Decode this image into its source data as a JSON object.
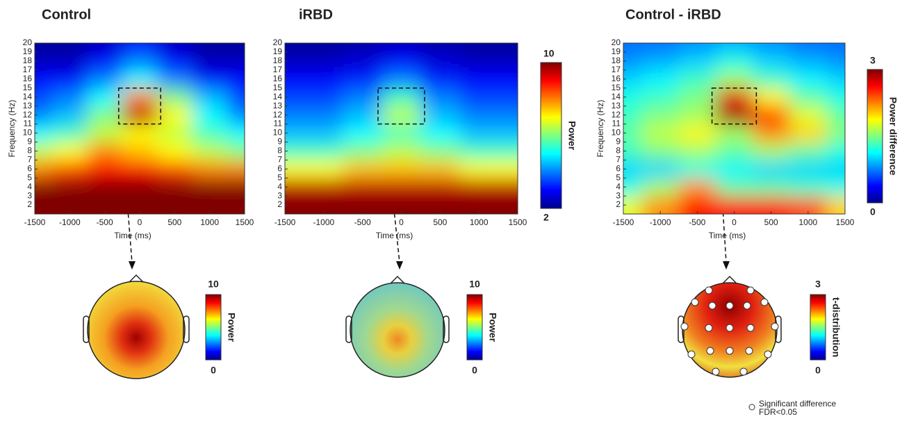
{
  "chart_data": [
    {
      "type": "heatmap",
      "title": "Control",
      "xlabel": "Time (ms)",
      "ylabel": "Frequency (Hz)",
      "x": [
        -1500,
        -1000,
        -500,
        0,
        500,
        1000,
        1500
      ],
      "y": [
        2,
        4,
        6,
        8,
        10,
        12,
        14,
        16,
        18,
        20
      ],
      "values": [
        [
          10,
          10,
          10,
          10,
          10,
          10,
          10
        ],
        [
          10,
          10,
          10,
          10,
          10,
          10,
          10
        ],
        [
          8,
          8.5,
          9,
          9,
          8.5,
          8,
          8
        ],
        [
          6.5,
          7,
          8,
          7.5,
          7,
          6.5,
          6
        ],
        [
          5,
          5.5,
          6.5,
          7,
          6.5,
          5.5,
          5
        ],
        [
          4,
          4.5,
          6,
          9.5,
          7,
          5,
          4
        ],
        [
          3.5,
          4,
          5,
          8,
          6,
          4.5,
          3.5
        ],
        [
          3,
          3,
          4,
          5,
          4,
          3,
          3
        ],
        [
          2.5,
          2.5,
          3,
          4,
          3,
          2.5,
          2.5
        ],
        [
          2.2,
          2.2,
          2.5,
          3,
          2.5,
          2.2,
          2.2
        ]
      ],
      "xlim": [
        -1500,
        1500
      ],
      "ylim": [
        1,
        20
      ],
      "xticks": [
        -1500,
        -1000,
        -500,
        0,
        500,
        1000,
        1500
      ],
      "yticks": [
        2,
        3,
        4,
        5,
        6,
        7,
        8,
        9,
        10,
        11,
        12,
        13,
        14,
        15,
        16,
        17,
        18,
        19,
        20
      ],
      "clim": [
        2,
        10
      ],
      "colormap": "jet"
    },
    {
      "type": "heatmap",
      "title": "iRBD",
      "xlabel": "Time (ms)",
      "x": [
        -1500,
        -1000,
        -500,
        0,
        500,
        1000,
        1500
      ],
      "y": [
        2,
        4,
        6,
        8,
        10,
        12,
        14,
        16,
        18,
        20
      ],
      "values": [
        [
          10,
          10,
          10,
          10,
          10,
          10,
          10
        ],
        [
          9.5,
          9.5,
          9.5,
          9.5,
          9.5,
          9.5,
          9.5
        ],
        [
          7,
          7,
          7.5,
          7.5,
          7.5,
          7,
          7
        ],
        [
          5.5,
          5.5,
          6,
          6.5,
          6,
          5.5,
          5.5
        ],
        [
          4.5,
          4.5,
          5,
          5.5,
          5,
          4.5,
          4.5
        ],
        [
          4,
          4,
          4.5,
          6.5,
          4.5,
          4,
          4
        ],
        [
          3.5,
          3.5,
          4,
          5.5,
          4,
          3.5,
          3.5
        ],
        [
          3,
          3,
          3.2,
          4,
          3.2,
          3,
          3
        ],
        [
          2.5,
          2.5,
          2.7,
          3,
          2.7,
          2.5,
          2.5
        ],
        [
          2.2,
          2.2,
          2.3,
          2.5,
          2.3,
          2.2,
          2.2
        ]
      ],
      "xlim": [
        -1500,
        1500
      ],
      "ylim": [
        1,
        20
      ],
      "xticks": [
        -1500,
        -1000,
        -500,
        0,
        500,
        1000,
        1500
      ],
      "yticks": [
        2,
        3,
        4,
        5,
        6,
        7,
        8,
        9,
        10,
        11,
        12,
        13,
        14,
        15,
        16,
        17,
        18,
        19,
        20
      ],
      "clim": [
        2,
        10
      ],
      "colormap": "jet",
      "colorbar": {
        "label": "Power",
        "ticks": [
          2,
          10
        ]
      }
    },
    {
      "type": "heatmap",
      "title": "Control - iRBD",
      "xlabel": "Time (ms)",
      "ylabel": "Frequency (Hz)",
      "x": [
        -1500,
        -1000,
        -500,
        0,
        500,
        1000,
        1500
      ],
      "y": [
        2,
        4,
        6,
        8,
        10,
        12,
        14,
        16,
        18,
        20
      ],
      "values": [
        [
          1.8,
          2.2,
          2.6,
          2.6,
          2.6,
          2.4,
          2
        ],
        [
          1.2,
          1.6,
          2.2,
          1.4,
          1.4,
          1.3,
          1.2
        ],
        [
          1,
          1,
          1.2,
          1.1,
          1,
          1,
          1
        ],
        [
          1.3,
          1.5,
          1.6,
          1.4,
          1.6,
          1.4,
          1.2
        ],
        [
          1.4,
          1.7,
          1.9,
          1.6,
          2.2,
          2,
          1.5
        ],
        [
          1.3,
          1.5,
          1.6,
          2.9,
          2.5,
          1.8,
          1.4
        ],
        [
          1.2,
          1.3,
          1.5,
          2.7,
          1.9,
          1.4,
          1.2
        ],
        [
          1,
          1.1,
          1.3,
          1.6,
          1.3,
          1.1,
          1
        ],
        [
          0.8,
          0.9,
          1,
          1.2,
          1,
          0.9,
          0.8
        ],
        [
          0.7,
          0.7,
          0.8,
          0.9,
          0.8,
          0.7,
          0.7
        ]
      ],
      "xlim": [
        -1500,
        1500
      ],
      "ylim": [
        1,
        20
      ],
      "xticks": [
        -1500,
        -1000,
        -500,
        0,
        500,
        1000,
        1500
      ],
      "yticks": [
        2,
        3,
        4,
        5,
        6,
        7,
        8,
        9,
        10,
        11,
        12,
        13,
        14,
        15,
        16,
        17,
        18,
        19,
        20
      ],
      "clim": [
        0,
        3
      ],
      "colormap": "jet",
      "colorbar": {
        "label": "Power difference",
        "ticks": [
          0,
          3
        ]
      }
    }
  ],
  "topoplots": [
    {
      "label": "Power",
      "ticks": [
        0,
        10
      ]
    },
    {
      "label": "Power",
      "ticks": [
        0,
        10
      ]
    },
    {
      "label": "t-distribution",
      "ticks": [
        0,
        3
      ]
    }
  ],
  "legend": {
    "lines": [
      "Significant difference",
      "FDR<0.05"
    ]
  }
}
